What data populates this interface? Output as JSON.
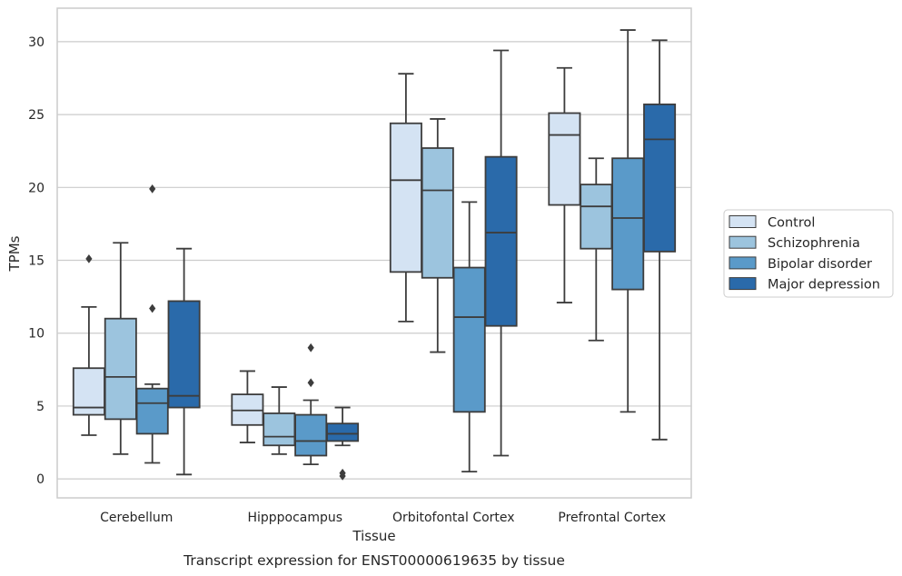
{
  "chart_data": {
    "type": "boxplot",
    "caption": "Transcript expression for ENST00000619635 by tissue",
    "xlabel": "Tissue",
    "ylabel": "TPMs",
    "ylim": [
      -1.3,
      32.3
    ],
    "yticks": [
      0,
      5,
      10,
      15,
      20,
      25,
      30
    ],
    "grid": "horizontal",
    "legend_position": "right-outside",
    "categories": [
      "Cerebellum",
      "Hipppocampus",
      "Orbitofontal Cortex",
      "Prefrontal Cortex"
    ],
    "series": [
      {
        "name": "Control",
        "color": "#d4e3f3",
        "boxes": [
          {
            "whislo": 3.0,
            "q1": 4.4,
            "med": 4.9,
            "q3": 7.6,
            "whishi": 11.8,
            "fliers": [
              15.1
            ]
          },
          {
            "whislo": 2.5,
            "q1": 3.7,
            "med": 4.7,
            "q3": 5.8,
            "whishi": 7.4,
            "fliers": []
          },
          {
            "whislo": 10.8,
            "q1": 14.2,
            "med": 20.5,
            "q3": 24.4,
            "whishi": 27.8,
            "fliers": []
          },
          {
            "whislo": 12.1,
            "q1": 18.8,
            "med": 23.6,
            "q3": 25.1,
            "whishi": 28.2,
            "fliers": []
          }
        ]
      },
      {
        "name": "Schizophrenia",
        "color": "#9cc4de",
        "boxes": [
          {
            "whislo": 1.7,
            "q1": 4.1,
            "med": 7.0,
            "q3": 11.0,
            "whishi": 16.2,
            "fliers": []
          },
          {
            "whislo": 1.7,
            "q1": 2.3,
            "med": 2.9,
            "q3": 4.5,
            "whishi": 6.3,
            "fliers": []
          },
          {
            "whislo": 8.7,
            "q1": 13.8,
            "med": 19.8,
            "q3": 22.7,
            "whishi": 24.7,
            "fliers": []
          },
          {
            "whislo": 9.5,
            "q1": 15.8,
            "med": 18.7,
            "q3": 20.2,
            "whishi": 22.0,
            "fliers": []
          }
        ]
      },
      {
        "name": "Bipolar disorder",
        "color": "#5a9ac9",
        "boxes": [
          {
            "whislo": 1.1,
            "q1": 3.1,
            "med": 5.2,
            "q3": 6.2,
            "whishi": 6.5,
            "fliers": [
              11.7,
              19.9
            ]
          },
          {
            "whislo": 1.0,
            "q1": 1.6,
            "med": 2.6,
            "q3": 4.4,
            "whishi": 5.4,
            "fliers": [
              6.6,
              9.0
            ]
          },
          {
            "whislo": 0.5,
            "q1": 4.6,
            "med": 11.1,
            "q3": 14.5,
            "whishi": 19.0,
            "fliers": []
          },
          {
            "whislo": 4.6,
            "q1": 13.0,
            "med": 17.9,
            "q3": 22.0,
            "whishi": 30.8,
            "fliers": []
          }
        ]
      },
      {
        "name": "Major depression",
        "color": "#2a6aaa",
        "boxes": [
          {
            "whislo": 0.3,
            "q1": 4.9,
            "med": 5.7,
            "q3": 12.2,
            "whishi": 15.8,
            "fliers": []
          },
          {
            "whislo": 2.3,
            "q1": 2.6,
            "med": 3.1,
            "q3": 3.8,
            "whishi": 4.9,
            "fliers": [
              0.2,
              0.4
            ]
          },
          {
            "whislo": 1.6,
            "q1": 10.5,
            "med": 16.9,
            "q3": 22.1,
            "whishi": 29.4,
            "fliers": []
          },
          {
            "whislo": 2.7,
            "q1": 15.6,
            "med": 23.3,
            "q3": 25.7,
            "whishi": 30.1,
            "fliers": []
          }
        ]
      }
    ]
  }
}
